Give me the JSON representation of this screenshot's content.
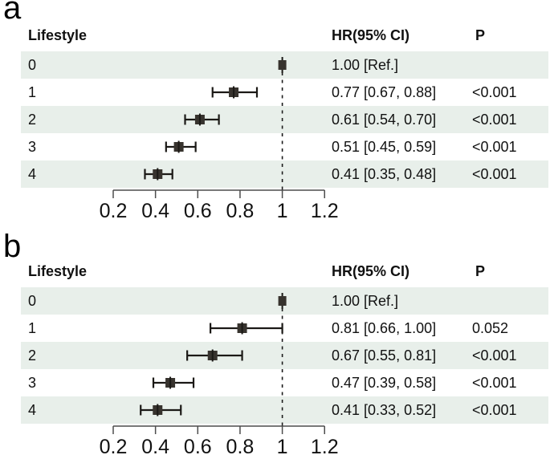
{
  "colors": {
    "row_band": "#e8efea",
    "text": "#111111",
    "axis": "#4d4d4d",
    "marker_fill": "#37332e",
    "ci_line": "#1b1916",
    "ref_dash": "#1a1a1a"
  },
  "chart_data": [
    {
      "type": "forest",
      "panel_label": "a",
      "columns": {
        "group": "Lifestyle",
        "estimate": "HR(95% CI)",
        "p": "P"
      },
      "x_axis": {
        "range": [
          0.2,
          1.2
        ],
        "ticks": [
          0.2,
          0.4,
          0.6,
          0.8,
          1,
          1.2
        ],
        "tick_labels": [
          "0.2",
          "0.4",
          "0.6",
          "0.8",
          "1",
          "1.2"
        ],
        "ref_line": 1
      },
      "rows": [
        {
          "label": "0",
          "hr": 1.0,
          "ci_low": 1.0,
          "ci_high": 1.0,
          "estimate_text": "1.00 [Ref.]",
          "p_text": "",
          "is_ref": true,
          "shaded": true
        },
        {
          "label": "1",
          "hr": 0.77,
          "ci_low": 0.67,
          "ci_high": 0.88,
          "estimate_text": "0.77 [0.67, 0.88]",
          "p_text": "<0.001",
          "is_ref": false,
          "shaded": false
        },
        {
          "label": "2",
          "hr": 0.61,
          "ci_low": 0.54,
          "ci_high": 0.7,
          "estimate_text": "0.61 [0.54, 0.70]",
          "p_text": "<0.001",
          "is_ref": false,
          "shaded": true
        },
        {
          "label": "3",
          "hr": 0.51,
          "ci_low": 0.45,
          "ci_high": 0.59,
          "estimate_text": "0.51 [0.45, 0.59]",
          "p_text": "<0.001",
          "is_ref": false,
          "shaded": false
        },
        {
          "label": "4",
          "hr": 0.41,
          "ci_low": 0.35,
          "ci_high": 0.48,
          "estimate_text": "0.41 [0.35, 0.48]",
          "p_text": "<0.001",
          "is_ref": false,
          "shaded": true
        }
      ]
    },
    {
      "type": "forest",
      "panel_label": "b",
      "columns": {
        "group": "Lifestyle",
        "estimate": "HR(95% CI)",
        "p": "P"
      },
      "x_axis": {
        "range": [
          0.2,
          1.2
        ],
        "ticks": [
          0.2,
          0.4,
          0.6,
          0.8,
          1,
          1.2
        ],
        "tick_labels": [
          "0.2",
          "0.4",
          "0.6",
          "0.8",
          "1",
          "1.2"
        ],
        "ref_line": 1
      },
      "rows": [
        {
          "label": "0",
          "hr": 1.0,
          "ci_low": 1.0,
          "ci_high": 1.0,
          "estimate_text": "1.00 [Ref.]",
          "p_text": "",
          "is_ref": true,
          "shaded": true
        },
        {
          "label": "1",
          "hr": 0.81,
          "ci_low": 0.66,
          "ci_high": 1.0,
          "estimate_text": "0.81 [0.66, 1.00]",
          "p_text": "0.052",
          "is_ref": false,
          "shaded": false
        },
        {
          "label": "2",
          "hr": 0.67,
          "ci_low": 0.55,
          "ci_high": 0.81,
          "estimate_text": "0.67 [0.55, 0.81]",
          "p_text": "<0.001",
          "is_ref": false,
          "shaded": true
        },
        {
          "label": "3",
          "hr": 0.47,
          "ci_low": 0.39,
          "ci_high": 0.58,
          "estimate_text": "0.47 [0.39, 0.58]",
          "p_text": "<0.001",
          "is_ref": false,
          "shaded": false
        },
        {
          "label": "4",
          "hr": 0.41,
          "ci_low": 0.33,
          "ci_high": 0.52,
          "estimate_text": "0.41 [0.33, 0.52]",
          "p_text": "<0.001",
          "is_ref": false,
          "shaded": true
        }
      ]
    }
  ]
}
